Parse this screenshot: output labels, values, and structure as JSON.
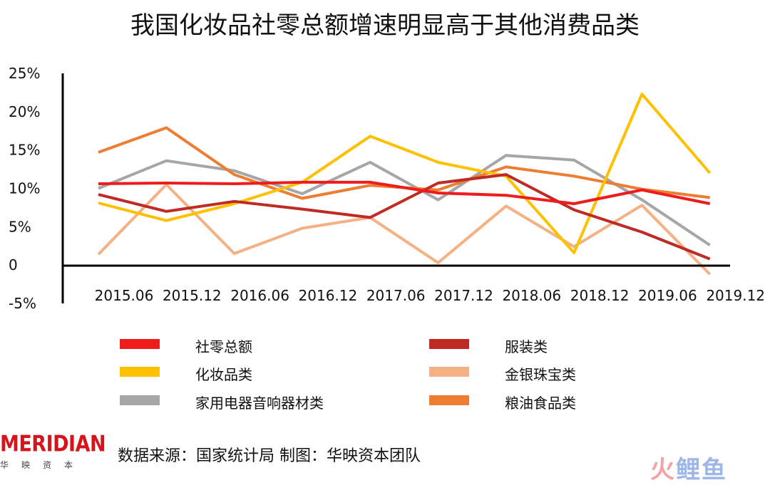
{
  "chart_data": {
    "type": "line",
    "title": "我国化妆品社零总额增速明显高于其他消费品类",
    "xlabel": "",
    "ylabel": "",
    "x_ticks": [
      "2015.06",
      "2015.12",
      "2016.06",
      "2016.12",
      "2017.06",
      "2017.12",
      "2018.06",
      "2018.12",
      "2019.06",
      "2019.12"
    ],
    "y_ticks": [
      "25%",
      "20%",
      "15%",
      "10%",
      "5%",
      "0",
      "-5%"
    ],
    "ylim": [
      -5,
      25
    ],
    "grid": false,
    "legend_position": "bottom",
    "series": [
      {
        "name": "社零总额",
        "color": "#ee1c1c",
        "values": [
          10.6,
          10.7,
          10.6,
          10.8,
          10.8,
          9.4,
          9.1,
          8.0,
          9.8,
          8.0
        ]
      },
      {
        "name": "服装类",
        "color": "#bf2a24",
        "values": [
          9.2,
          7.0,
          8.3,
          7.3,
          6.2,
          10.7,
          11.8,
          7.2,
          4.3,
          0.8
        ]
      },
      {
        "name": "化妆品类",
        "color": "#ffc000",
        "values": [
          8.1,
          5.8,
          8.0,
          10.8,
          16.8,
          13.4,
          11.6,
          1.6,
          22.3,
          12.0
        ]
      },
      {
        "name": "金银珠宝类",
        "color": "#f4b183",
        "values": [
          1.4,
          10.5,
          1.5,
          4.8,
          6.2,
          0.3,
          7.7,
          2.4,
          7.8,
          -1.2
        ]
      },
      {
        "name": "家用电器音响器材类",
        "color": "#a6a6a6",
        "values": [
          10.0,
          13.6,
          12.3,
          9.3,
          13.4,
          8.5,
          14.3,
          13.7,
          8.5,
          2.6
        ]
      },
      {
        "name": "粮油食品类",
        "color": "#ed7d31",
        "values": [
          14.7,
          17.9,
          11.8,
          8.7,
          10.4,
          9.8,
          12.8,
          11.6,
          9.9,
          8.8
        ]
      }
    ]
  },
  "footer": {
    "logo_text": "MERIDIAN",
    "logo_sub": "华映资本",
    "source": "数据来源：国家统计局  制图：华映资本团队",
    "watermark_part1": "火",
    "watermark_part2": "鲤鱼"
  }
}
